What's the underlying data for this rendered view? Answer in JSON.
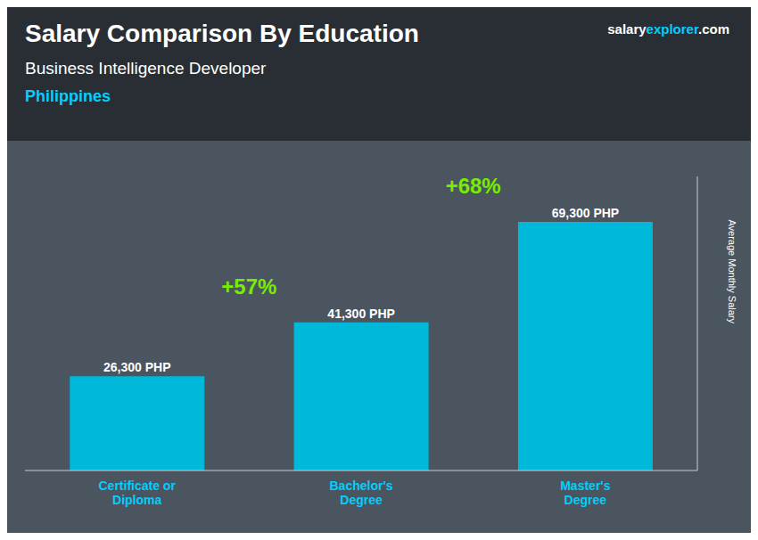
{
  "chart_data": {
    "type": "bar",
    "title": "Salary Comparison By Education",
    "subtitle": "Business Intelligence Developer",
    "annotations": [
      "Philippines",
      "salaryexplorer.com",
      "+57%",
      "+68%"
    ],
    "categories": [
      "Certificate or\nDiploma",
      "Bachelor's\nDegree",
      "Master's\nDegree"
    ],
    "values": [
      26300,
      41300,
      69300
    ],
    "value_labels": [
      "26,300 PHP",
      "41,300 PHP",
      "69,300 PHP"
    ],
    "data_labels": true,
    "color": "#00b8d9",
    "y_label": "Average Monthly Salary",
    "ylim": [
      0,
      82000
    ],
    "tick_labels": "x",
    "grid": false
  }
}
